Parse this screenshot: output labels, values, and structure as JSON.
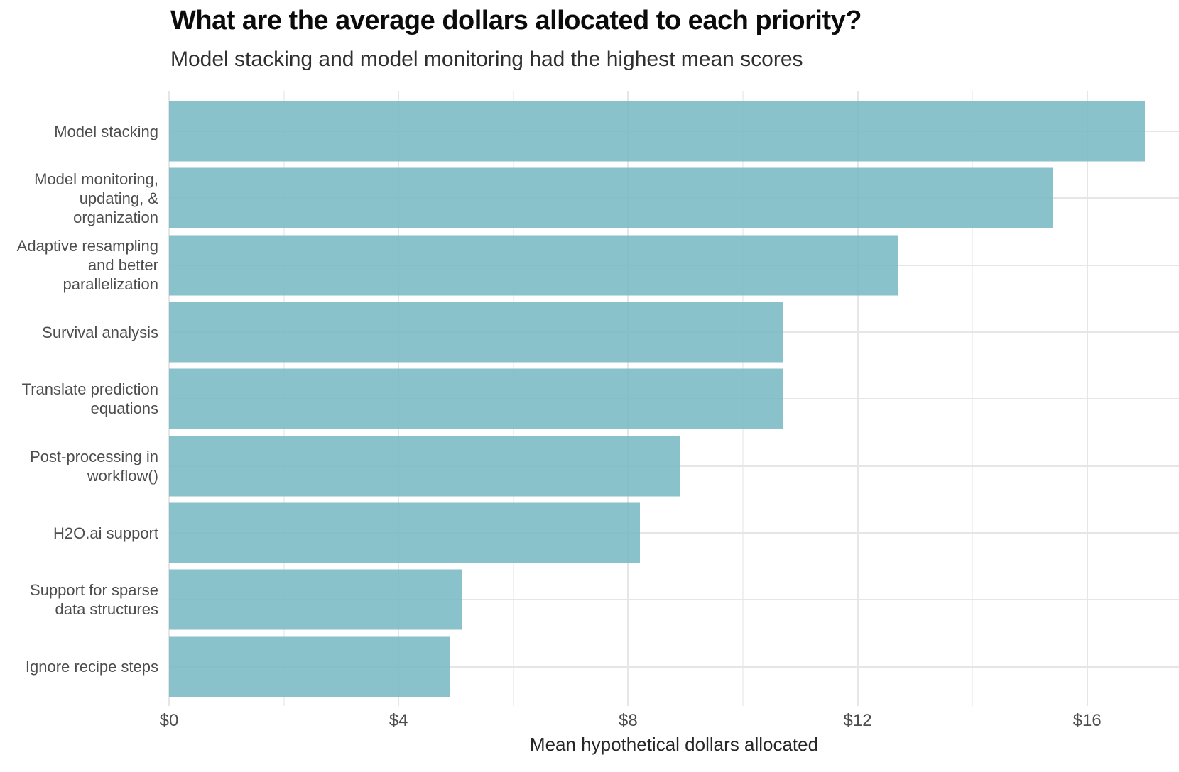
{
  "chart_data": {
    "type": "bar",
    "orientation": "horizontal",
    "title": "What are the average dollars allocated to each priority?",
    "subtitle": "Model stacking and model monitoring had the highest mean scores",
    "xlabel": "Mean hypothetical dollars allocated",
    "categories": [
      "Model stacking",
      "Model monitoring, updating, & organization",
      "Adaptive resampling and better parallelization",
      "Survival analysis",
      "Translate prediction equations",
      "Post-processing in workflow()",
      "H2O.ai support",
      "Support for sparse data structures",
      "Ignore recipe steps"
    ],
    "categories_wrapped": [
      [
        "Model stacking"
      ],
      [
        "Model monitoring,",
        "updating, &",
        "organization"
      ],
      [
        "Adaptive resampling",
        "and better",
        "parallelization"
      ],
      [
        "Survival analysis"
      ],
      [
        "Translate prediction",
        "equations"
      ],
      [
        "Post-processing in",
        "workflow()"
      ],
      [
        "H2O.ai support"
      ],
      [
        "Support for sparse",
        "data structures"
      ],
      [
        "Ignore recipe steps"
      ]
    ],
    "values": [
      17.0,
      15.4,
      12.7,
      10.7,
      10.7,
      8.9,
      8.2,
      5.1,
      4.9
    ],
    "x_ticks": [
      {
        "value": 0,
        "label": "$0"
      },
      {
        "value": 4,
        "label": "$4"
      },
      {
        "value": 8,
        "label": "$8"
      },
      {
        "value": 12,
        "label": "$12"
      },
      {
        "value": 16,
        "label": "$16"
      }
    ],
    "x_minor_gridlines": [
      2,
      6,
      10,
      14
    ],
    "xlim": [
      0,
      17.6
    ],
    "grid": {
      "vertical": "major+minor",
      "horizontal": "category-centers"
    },
    "legend": false,
    "colors": {
      "bar": "#7ABAC4",
      "bar_opacity": 0.88,
      "grid_major": "#E6E6E6",
      "grid_minor": "#F1F1F1",
      "title": "#0B0B0B",
      "subtitle": "#2F2F2F",
      "axis_text": "#4D4D4D"
    }
  }
}
